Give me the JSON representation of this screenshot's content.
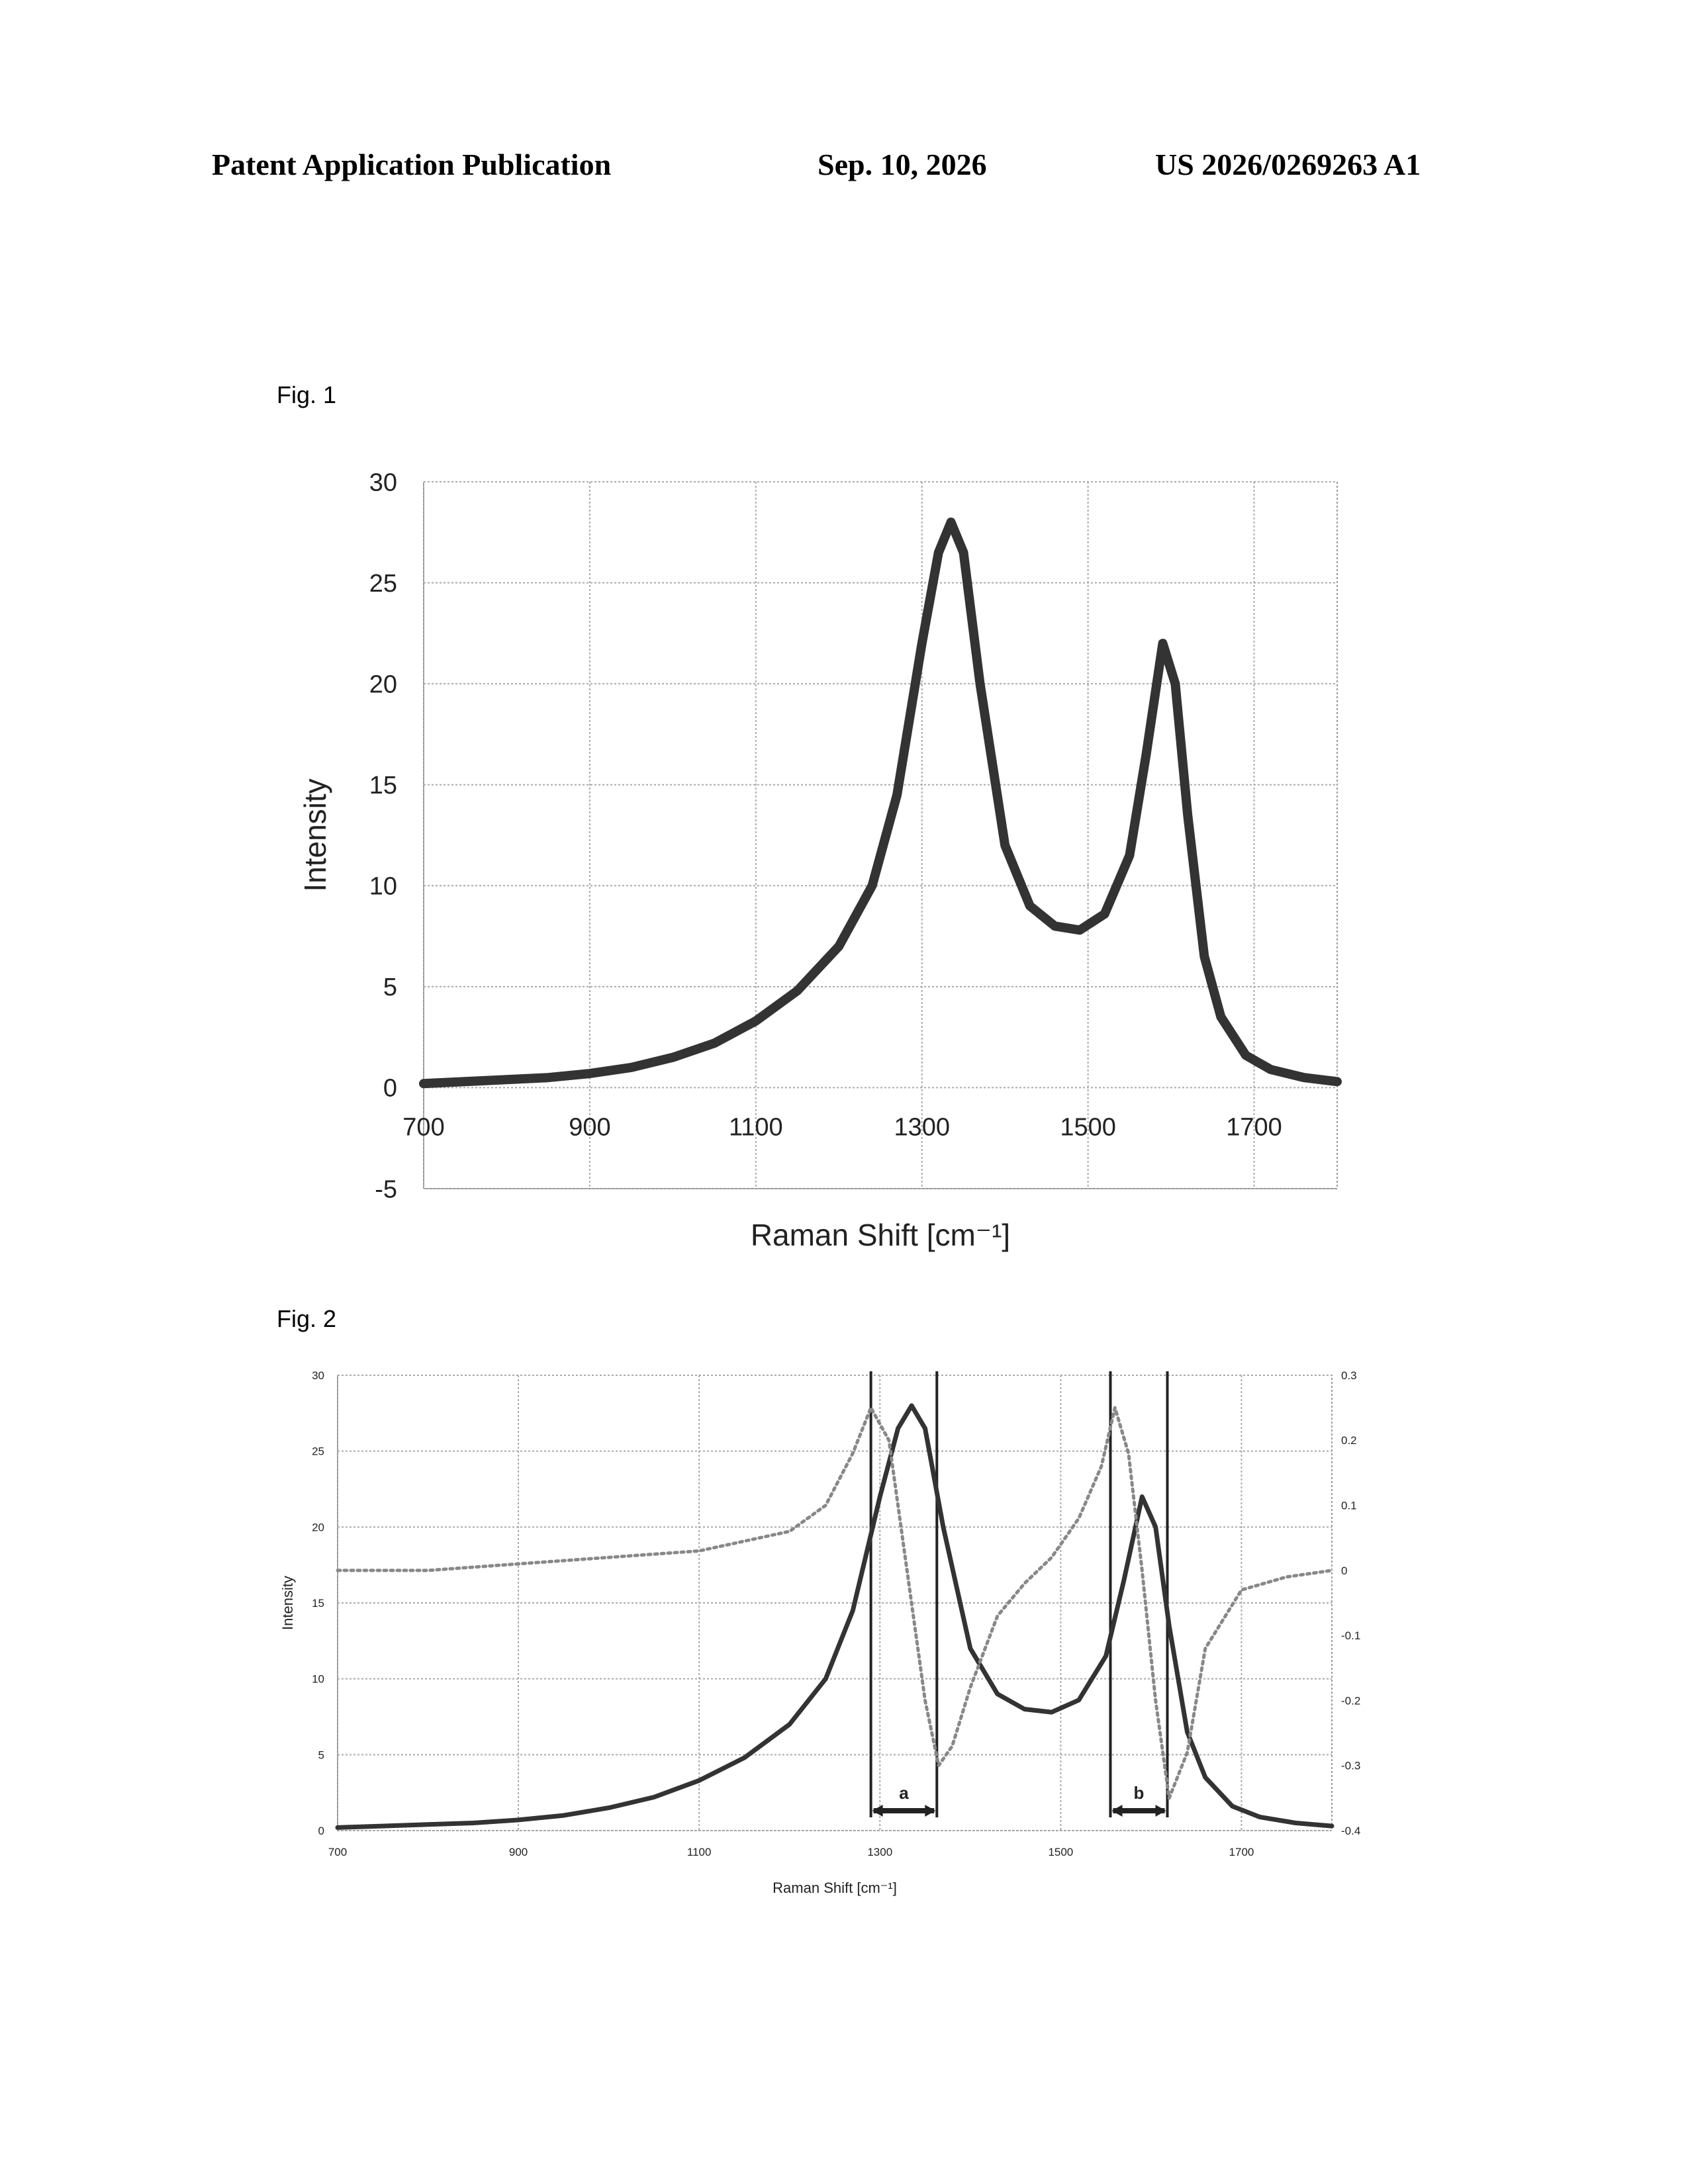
{
  "header": {
    "publication": "Patent Application Publication",
    "date": "Sep. 10, 2026",
    "number": "US 2026/0269263 A1"
  },
  "figures": [
    {
      "label": "Fig. 1"
    },
    {
      "label": "Fig. 2"
    }
  ],
  "chart_data": [
    {
      "type": "line",
      "title": "",
      "xlabel": "Raman Shift [cm⁻¹]",
      "ylabel": "Intensity",
      "xlim": [
        700,
        1800
      ],
      "ylim": [
        -5,
        30
      ],
      "x_ticks": [
        700,
        900,
        1100,
        1300,
        1500,
        1700
      ],
      "y_ticks": [
        -5,
        0,
        5,
        10,
        15,
        20,
        25,
        30
      ],
      "x_tick_labels": [
        "700",
        "900",
        "1100",
        "1300",
        "1500",
        "1700"
      ],
      "y_tick_labels": [
        "-5",
        "0",
        "5",
        "10",
        "15",
        "20",
        "25",
        "30"
      ],
      "grid": true,
      "series": [
        {
          "x": [
            700,
            750,
            800,
            850,
            900,
            950,
            1000,
            1050,
            1100,
            1150,
            1200,
            1240,
            1270,
            1300,
            1320,
            1335,
            1350,
            1370,
            1400,
            1430,
            1460,
            1490,
            1520,
            1550,
            1570,
            1590,
            1605,
            1620,
            1640,
            1660,
            1690,
            1720,
            1760,
            1800
          ],
          "y": [
            0.2,
            0.3,
            0.4,
            0.5,
            0.7,
            1.0,
            1.5,
            2.2,
            3.3,
            4.8,
            7.0,
            10.0,
            14.5,
            22.0,
            26.5,
            28.0,
            26.5,
            20.0,
            12.0,
            9.0,
            8.0,
            7.8,
            8.6,
            11.5,
            16.5,
            22.0,
            20.0,
            13.5,
            6.5,
            3.5,
            1.6,
            0.9,
            0.5,
            0.3
          ]
        }
      ],
      "color": "#333333"
    },
    {
      "type": "line",
      "title": "",
      "xlabel": "Raman Shift [cm⁻¹]",
      "ylabel": "Intensity",
      "xlim": [
        700,
        1800
      ],
      "ylim": [
        0,
        30
      ],
      "y2lim": [
        -0.4,
        0.3
      ],
      "x_ticks": [
        700,
        900,
        1100,
        1300,
        1500,
        1700
      ],
      "y_ticks": [
        0,
        5,
        10,
        15,
        20,
        25,
        30
      ],
      "y2_ticks": [
        -0.4,
        -0.3,
        -0.2,
        -0.1,
        0,
        0.1,
        0.2,
        0.3
      ],
      "x_tick_labels": [
        "700",
        "900",
        "1100",
        "1300",
        "1500",
        "1700"
      ],
      "y_tick_labels": [
        "0",
        "5",
        "10",
        "15",
        "20",
        "25",
        "30"
      ],
      "y2_tick_labels": [
        "-0.4",
        "-0.3",
        "-0.2",
        "-0.1",
        "0",
        "0.1",
        "0.2",
        "0.3"
      ],
      "grid": true,
      "series": [
        {
          "axis": "left",
          "style": "solid",
          "x": [
            700,
            750,
            800,
            850,
            900,
            950,
            1000,
            1050,
            1100,
            1150,
            1200,
            1240,
            1270,
            1300,
            1320,
            1335,
            1350,
            1370,
            1400,
            1430,
            1460,
            1490,
            1520,
            1550,
            1570,
            1590,
            1605,
            1620,
            1640,
            1660,
            1690,
            1720,
            1760,
            1800
          ],
          "y": [
            0.2,
            0.3,
            0.4,
            0.5,
            0.7,
            1.0,
            1.5,
            2.2,
            3.3,
            4.8,
            7.0,
            10.0,
            14.5,
            22.0,
            26.5,
            28.0,
            26.5,
            20.0,
            12.0,
            9.0,
            8.0,
            7.8,
            8.6,
            11.5,
            16.5,
            22.0,
            20.0,
            13.5,
            6.5,
            3.5,
            1.6,
            0.9,
            0.5,
            0.3
          ]
        },
        {
          "axis": "right",
          "style": "dotted",
          "x": [
            700,
            800,
            900,
            1000,
            1100,
            1200,
            1240,
            1270,
            1290,
            1310,
            1330,
            1350,
            1365,
            1380,
            1400,
            1430,
            1460,
            1490,
            1520,
            1545,
            1560,
            1575,
            1590,
            1605,
            1620,
            1640,
            1660,
            1700,
            1750,
            1800
          ],
          "y": [
            0.0,
            0.0,
            0.01,
            0.02,
            0.03,
            0.06,
            0.1,
            0.18,
            0.25,
            0.2,
            0.0,
            -0.2,
            -0.3,
            -0.27,
            -0.18,
            -0.07,
            -0.02,
            0.02,
            0.08,
            0.16,
            0.25,
            0.18,
            0.0,
            -0.2,
            -0.35,
            -0.28,
            -0.12,
            -0.03,
            -0.01,
            0.0
          ]
        }
      ],
      "annotations": [
        {
          "label": "a",
          "x_start": 1290,
          "x_end": 1363
        },
        {
          "label": "b",
          "x_start": 1555,
          "x_end": 1618
        }
      ],
      "color": "#333333"
    }
  ]
}
